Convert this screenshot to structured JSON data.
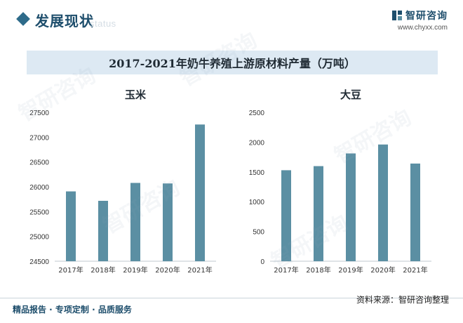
{
  "header": {
    "section_title": "发展现状",
    "section_subtitle": "status",
    "brand_name": "智研咨询",
    "brand_url": "www.chyxx.com"
  },
  "main_title": "2017-2021年奶牛养殖上游原材料产量（万吨）",
  "footer": {
    "left": "精品报告 · 专项定制 · 品质服务",
    "source": "资料来源：智研咨询整理"
  },
  "watermark_text": "智研咨询",
  "colors": {
    "bar": "#5b8fa3",
    "accent": "#1e4e6c",
    "title_bg": "#dde9f3"
  },
  "chart_data": [
    {
      "type": "bar",
      "title": "玉米",
      "categories": [
        "2017年",
        "2018年",
        "2019年",
        "2020年",
        "2021年"
      ],
      "values": [
        25907,
        25717,
        26078,
        26067,
        27255
      ],
      "ylim": [
        24500,
        27500
      ],
      "yticks": [
        24500,
        25000,
        25500,
        26000,
        26500,
        27000,
        27500
      ],
      "xlabel": "",
      "ylabel": "",
      "grid": false
    },
    {
      "type": "bar",
      "title": "大豆",
      "categories": [
        "2017年",
        "2018年",
        "2019年",
        "2020年",
        "2021年"
      ],
      "values": [
        1528,
        1597,
        1810,
        1960,
        1640
      ],
      "ylim": [
        0,
        2500
      ],
      "yticks": [
        0,
        500,
        1000,
        1500,
        2000,
        2500
      ],
      "xlabel": "",
      "ylabel": "",
      "grid": false
    }
  ]
}
